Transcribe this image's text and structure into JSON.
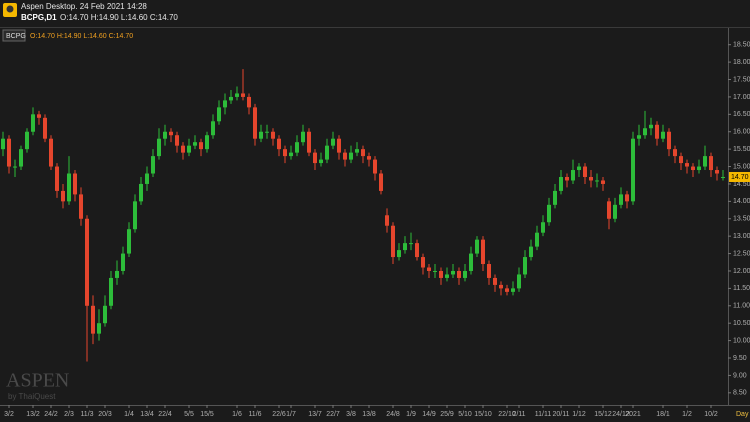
{
  "header": {
    "app_title": "Aspen Desktop. 24 Feb 2021 14:28",
    "symbol": "BCPG,D1",
    "ohlc": "O:14.70 H:14.90 L:14.60 C:14.70"
  },
  "legend": {
    "ohlc": "O:14.70 H:14.90 L:14.60 C:14.70"
  },
  "watermark": {
    "brand": "ASPEN",
    "by": "by ThaiQuest"
  },
  "chart_data": {
    "type": "candlestick",
    "timeframe": "Day",
    "up_color": "#2dbd3a",
    "down_color": "#e5462d",
    "ylim": [
      8.15,
      18.98
    ],
    "yticks": [
      {
        "value": 8.5,
        "label": "8.50"
      },
      {
        "value": 9,
        "label": "9.00"
      },
      {
        "value": 9.5,
        "label": "9.50"
      },
      {
        "value": 10,
        "label": "10.00"
      },
      {
        "value": 10.5,
        "label": "10.50"
      },
      {
        "value": 11,
        "label": "11.00"
      },
      {
        "value": 11.5,
        "label": "11.50"
      },
      {
        "value": 12,
        "label": "12.00"
      },
      {
        "value": 12.5,
        "label": "12.50"
      },
      {
        "value": 13,
        "label": "13.00"
      },
      {
        "value": 13.5,
        "label": "13.50"
      },
      {
        "value": 14,
        "label": "14.00"
      },
      {
        "value": 14.5,
        "label": "14.50"
      },
      {
        "value": 15,
        "label": "15.00"
      },
      {
        "value": 15.5,
        "label": "15.50"
      },
      {
        "value": 16,
        "label": "16.00"
      },
      {
        "value": 16.5,
        "label": "16.50"
      },
      {
        "value": 17,
        "label": "17.00"
      },
      {
        "value": 17.5,
        "label": "17.50"
      },
      {
        "value": 18,
        "label": "18.00"
      },
      {
        "value": 18.5,
        "label": "18.50"
      }
    ],
    "last_price": {
      "value": 14.7,
      "label": "14.70"
    },
    "categories": [
      null,
      "3/2",
      null,
      null,
      null,
      "13/2",
      null,
      null,
      "24/2",
      null,
      null,
      "2/3",
      null,
      null,
      "11/3",
      null,
      null,
      "20/3",
      null,
      null,
      null,
      "1/4",
      null,
      null,
      "13/4",
      null,
      null,
      "22/4",
      null,
      null,
      null,
      "5/5",
      null,
      null,
      "15/5",
      null,
      null,
      null,
      null,
      "1/6",
      null,
      null,
      "11/6",
      null,
      null,
      null,
      "22/6",
      null,
      "1/7",
      null,
      null,
      null,
      "13/7",
      null,
      null,
      "22/7",
      null,
      null,
      "3/8",
      null,
      null,
      "13/8",
      null,
      null,
      null,
      "24/8",
      null,
      null,
      "1/9",
      null,
      null,
      "14/9",
      null,
      null,
      "25/9",
      null,
      null,
      "5/10",
      null,
      null,
      "15/10",
      null,
      null,
      null,
      "22/10",
      null,
      "2/11",
      null,
      null,
      null,
      "11/11",
      null,
      null,
      "20/11",
      null,
      null,
      "1/12",
      null,
      null,
      null,
      "15/12",
      null,
      null,
      "24/12",
      null,
      "2021",
      null,
      null,
      null,
      null,
      "18/1",
      null,
      null,
      null,
      "1/2",
      null,
      null,
      null,
      "10/2",
      null,
      null
    ],
    "series": [
      {
        "name": "BCPG",
        "values": [
          [
            15.5,
            16.0,
            15.3,
            15.8
          ],
          [
            15.8,
            15.9,
            14.8,
            15.0
          ],
          [
            15.0,
            15.2,
            14.7,
            15.0
          ],
          [
            15.0,
            15.6,
            14.9,
            15.5
          ],
          [
            15.5,
            16.1,
            15.4,
            16.0
          ],
          [
            16.0,
            16.7,
            15.9,
            16.5
          ],
          [
            16.5,
            16.6,
            16.2,
            16.4
          ],
          [
            16.4,
            16.5,
            15.7,
            15.8
          ],
          [
            15.8,
            15.9,
            14.9,
            15.0
          ],
          [
            15.0,
            15.1,
            14.1,
            14.3
          ],
          [
            14.3,
            14.5,
            13.8,
            14.0
          ],
          [
            14.0,
            15.3,
            13.9,
            14.8
          ],
          [
            14.8,
            14.9,
            14.0,
            14.2
          ],
          [
            14.2,
            14.4,
            13.3,
            13.5
          ],
          [
            13.5,
            13.6,
            9.4,
            11.0
          ],
          [
            11.0,
            11.3,
            9.9,
            10.2
          ],
          [
            10.2,
            10.9,
            10.0,
            10.5
          ],
          [
            10.5,
            11.3,
            10.4,
            11.0
          ],
          [
            11.0,
            12.0,
            10.9,
            11.8
          ],
          [
            11.8,
            12.3,
            11.6,
            12.0
          ],
          [
            12.0,
            12.7,
            11.9,
            12.5
          ],
          [
            12.5,
            13.4,
            12.4,
            13.2
          ],
          [
            13.2,
            14.2,
            13.1,
            14.0
          ],
          [
            14.0,
            14.7,
            13.9,
            14.5
          ],
          [
            14.5,
            15.0,
            14.3,
            14.8
          ],
          [
            14.8,
            15.5,
            14.7,
            15.3
          ],
          [
            15.3,
            16.1,
            15.2,
            15.8
          ],
          [
            15.8,
            16.2,
            15.6,
            16.0
          ],
          [
            16.0,
            16.1,
            15.7,
            15.9
          ],
          [
            15.9,
            16.0,
            15.4,
            15.6
          ],
          [
            15.6,
            15.7,
            15.2,
            15.4
          ],
          [
            15.4,
            15.8,
            15.3,
            15.6
          ],
          [
            15.6,
            15.9,
            15.5,
            15.7
          ],
          [
            15.7,
            15.8,
            15.3,
            15.5
          ],
          [
            15.5,
            16.0,
            15.4,
            15.9
          ],
          [
            15.9,
            16.5,
            15.8,
            16.3
          ],
          [
            16.3,
            16.9,
            16.2,
            16.7
          ],
          [
            16.7,
            17.1,
            16.5,
            16.9
          ],
          [
            16.9,
            17.2,
            16.8,
            17.0
          ],
          [
            17.0,
            17.3,
            16.9,
            17.1
          ],
          [
            17.1,
            17.8,
            16.9,
            17.0
          ],
          [
            17.0,
            17.1,
            16.5,
            16.7
          ],
          [
            16.7,
            16.8,
            15.6,
            15.8
          ],
          [
            15.8,
            16.2,
            15.7,
            16.0
          ],
          [
            16.0,
            16.2,
            15.8,
            16.0
          ],
          [
            16.0,
            16.1,
            15.6,
            15.8
          ],
          [
            15.8,
            15.9,
            15.3,
            15.5
          ],
          [
            15.5,
            15.6,
            15.1,
            15.3
          ],
          [
            15.3,
            15.6,
            15.2,
            15.4
          ],
          [
            15.4,
            15.9,
            15.3,
            15.7
          ],
          [
            15.7,
            16.2,
            15.6,
            16.0
          ],
          [
            16.0,
            16.1,
            15.3,
            15.4
          ],
          [
            15.4,
            15.5,
            14.9,
            15.1
          ],
          [
            15.1,
            15.4,
            15.0,
            15.2
          ],
          [
            15.2,
            15.8,
            15.1,
            15.6
          ],
          [
            15.6,
            16.0,
            15.5,
            15.8
          ],
          [
            15.8,
            15.9,
            15.2,
            15.4
          ],
          [
            15.4,
            15.5,
            15.0,
            15.2
          ],
          [
            15.2,
            15.6,
            15.1,
            15.4
          ],
          [
            15.4,
            15.7,
            15.3,
            15.5
          ],
          [
            15.5,
            15.6,
            15.1,
            15.3
          ],
          [
            15.3,
            15.4,
            15.0,
            15.2
          ],
          [
            15.2,
            15.3,
            14.6,
            14.8
          ],
          [
            14.8,
            14.9,
            14.2,
            14.3
          ],
          [
            13.6,
            13.8,
            13.1,
            13.3
          ],
          [
            13.3,
            13.4,
            12.2,
            12.4
          ],
          [
            12.4,
            12.8,
            12.3,
            12.6
          ],
          [
            12.6,
            13.0,
            12.5,
            12.8
          ],
          [
            12.8,
            13.1,
            12.6,
            12.8
          ],
          [
            12.8,
            12.9,
            12.3,
            12.4
          ],
          [
            12.4,
            12.5,
            11.9,
            12.1
          ],
          [
            12.1,
            12.2,
            11.8,
            12.0
          ],
          [
            12.0,
            12.2,
            11.8,
            12.0
          ],
          [
            12.0,
            12.1,
            11.6,
            11.8
          ],
          [
            11.8,
            12.1,
            11.7,
            11.9
          ],
          [
            11.9,
            12.2,
            11.8,
            12.0
          ],
          [
            12.0,
            12.1,
            11.6,
            11.8
          ],
          [
            11.8,
            12.2,
            11.7,
            12.0
          ],
          [
            12.0,
            12.7,
            11.9,
            12.5
          ],
          [
            12.5,
            13.0,
            12.4,
            12.9
          ],
          [
            12.9,
            13.0,
            12.0,
            12.2
          ],
          [
            12.2,
            12.3,
            11.6,
            11.8
          ],
          [
            11.8,
            11.9,
            11.4,
            11.6
          ],
          [
            11.6,
            11.7,
            11.3,
            11.5
          ],
          [
            11.5,
            11.6,
            11.3,
            11.4
          ],
          [
            11.4,
            11.7,
            11.3,
            11.5
          ],
          [
            11.5,
            12.1,
            11.4,
            11.9
          ],
          [
            11.9,
            12.6,
            11.8,
            12.4
          ],
          [
            12.4,
            12.9,
            12.3,
            12.7
          ],
          [
            12.7,
            13.3,
            12.6,
            13.1
          ],
          [
            13.1,
            13.6,
            13.0,
            13.4
          ],
          [
            13.4,
            14.1,
            13.3,
            13.9
          ],
          [
            13.9,
            14.5,
            13.8,
            14.3
          ],
          [
            14.3,
            14.9,
            14.2,
            14.7
          ],
          [
            14.7,
            14.8,
            14.4,
            14.6
          ],
          [
            14.6,
            15.2,
            14.5,
            14.9
          ],
          [
            14.9,
            15.1,
            14.7,
            15.0
          ],
          [
            15.0,
            15.1,
            14.5,
            14.7
          ],
          [
            14.7,
            14.9,
            14.4,
            14.6
          ],
          [
            14.6,
            14.8,
            14.4,
            14.6
          ],
          [
            14.6,
            14.7,
            14.3,
            14.5
          ],
          [
            14.0,
            14.1,
            13.2,
            13.5
          ],
          [
            13.5,
            14.1,
            13.4,
            13.9
          ],
          [
            13.9,
            14.4,
            13.8,
            14.2
          ],
          [
            14.2,
            14.3,
            13.8,
            14.0
          ],
          [
            14.0,
            16.0,
            13.9,
            15.8
          ],
          [
            15.8,
            16.2,
            15.6,
            15.9
          ],
          [
            15.9,
            16.6,
            15.8,
            16.1
          ],
          [
            16.1,
            16.4,
            15.9,
            16.2
          ],
          [
            16.2,
            16.3,
            15.6,
            15.8
          ],
          [
            15.8,
            16.2,
            15.7,
            16.0
          ],
          [
            16.0,
            16.1,
            15.3,
            15.5
          ],
          [
            15.5,
            15.6,
            15.1,
            15.3
          ],
          [
            15.3,
            15.4,
            14.9,
            15.1
          ],
          [
            15.1,
            15.2,
            14.8,
            15.0
          ],
          [
            15.0,
            15.1,
            14.7,
            14.9
          ],
          [
            14.9,
            15.2,
            14.8,
            15.0
          ],
          [
            15.0,
            15.6,
            14.9,
            15.3
          ],
          [
            15.3,
            15.4,
            14.7,
            14.9
          ],
          [
            14.9,
            15.0,
            14.6,
            14.8
          ],
          [
            14.7,
            14.9,
            14.6,
            14.7
          ]
        ]
      }
    ]
  }
}
